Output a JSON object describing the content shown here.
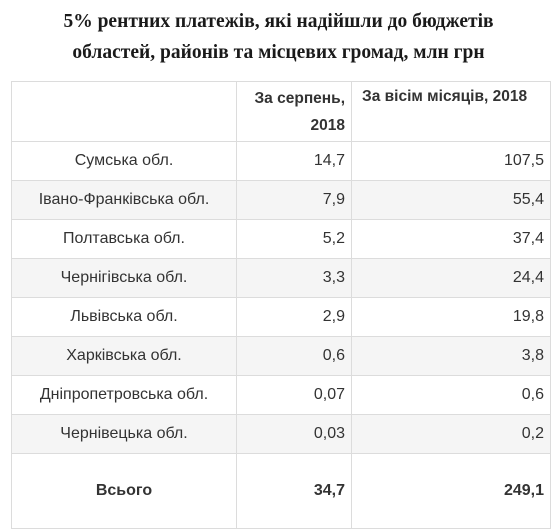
{
  "title": {
    "line1": "5% рентних платежів, які надійшли до бюджетів",
    "line2": "областей, районів та місцевих громад, млн грн"
  },
  "table": {
    "headers": [
      "",
      "За серпень, 2018",
      "За вісім місяців, 2018"
    ],
    "rows": [
      {
        "region": "Сумська обл.",
        "august": "14,7",
        "eight_months": "107,5"
      },
      {
        "region": "Івано-Франківська обл.",
        "august": "7,9",
        "eight_months": "55,4"
      },
      {
        "region": "Полтавська обл.",
        "august": "5,2",
        "eight_months": "37,4"
      },
      {
        "region": "Чернігівська обл.",
        "august": "3,3",
        "eight_months": "24,4"
      },
      {
        "region": "Львівська обл.",
        "august": "2,9",
        "eight_months": "19,8"
      },
      {
        "region": "Харківська обл.",
        "august": "0,6",
        "eight_months": "3,8"
      },
      {
        "region": "Дніпропетровська обл.",
        "august": "0,07",
        "eight_months": "0,6"
      },
      {
        "region": "Чернівецька обл.",
        "august": "0,03",
        "eight_months": "0,2"
      }
    ],
    "total": {
      "label": "Всього",
      "august": "34,7",
      "eight_months": "249,1"
    }
  }
}
